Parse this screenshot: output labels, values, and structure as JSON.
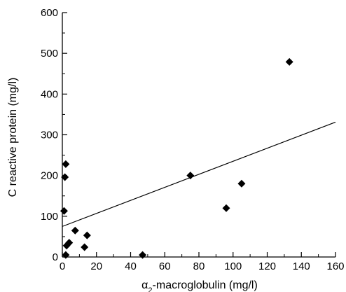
{
  "chart_data": {
    "type": "scatter",
    "title": "",
    "xlabel_parts": {
      "prefix": "α",
      "subscript": "2",
      "suffix": "-macroglobulin (mg/l)"
    },
    "ylabel": "C reactive protein (mg/l)",
    "xlim": [
      0,
      160
    ],
    "ylim": [
      0,
      600
    ],
    "x_ticks": [
      "0",
      "20",
      "40",
      "60",
      "80",
      "100",
      "120",
      "140",
      "160"
    ],
    "y_ticks": [
      "0",
      "100",
      "200",
      "300",
      "400",
      "500",
      "600"
    ],
    "x_minor_step": 10,
    "y_minor_step": 50,
    "grid": false,
    "marker": "diamond",
    "marker_color": "#000000",
    "points": [
      {
        "x": 1,
        "y": 113
      },
      {
        "x": 1.5,
        "y": 196
      },
      {
        "x": 2,
        "y": 228
      },
      {
        "x": 2,
        "y": 5
      },
      {
        "x": 2.5,
        "y": 28
      },
      {
        "x": 4,
        "y": 35
      },
      {
        "x": 7.5,
        "y": 65
      },
      {
        "x": 13,
        "y": 24
      },
      {
        "x": 14.5,
        "y": 53
      },
      {
        "x": 47,
        "y": 5
      },
      {
        "x": 75,
        "y": 200
      },
      {
        "x": 96,
        "y": 120
      },
      {
        "x": 105,
        "y": 180
      },
      {
        "x": 133,
        "y": 479
      }
    ],
    "trend_line": {
      "x": [
        0,
        160
      ],
      "y": [
        75,
        331
      ]
    }
  }
}
